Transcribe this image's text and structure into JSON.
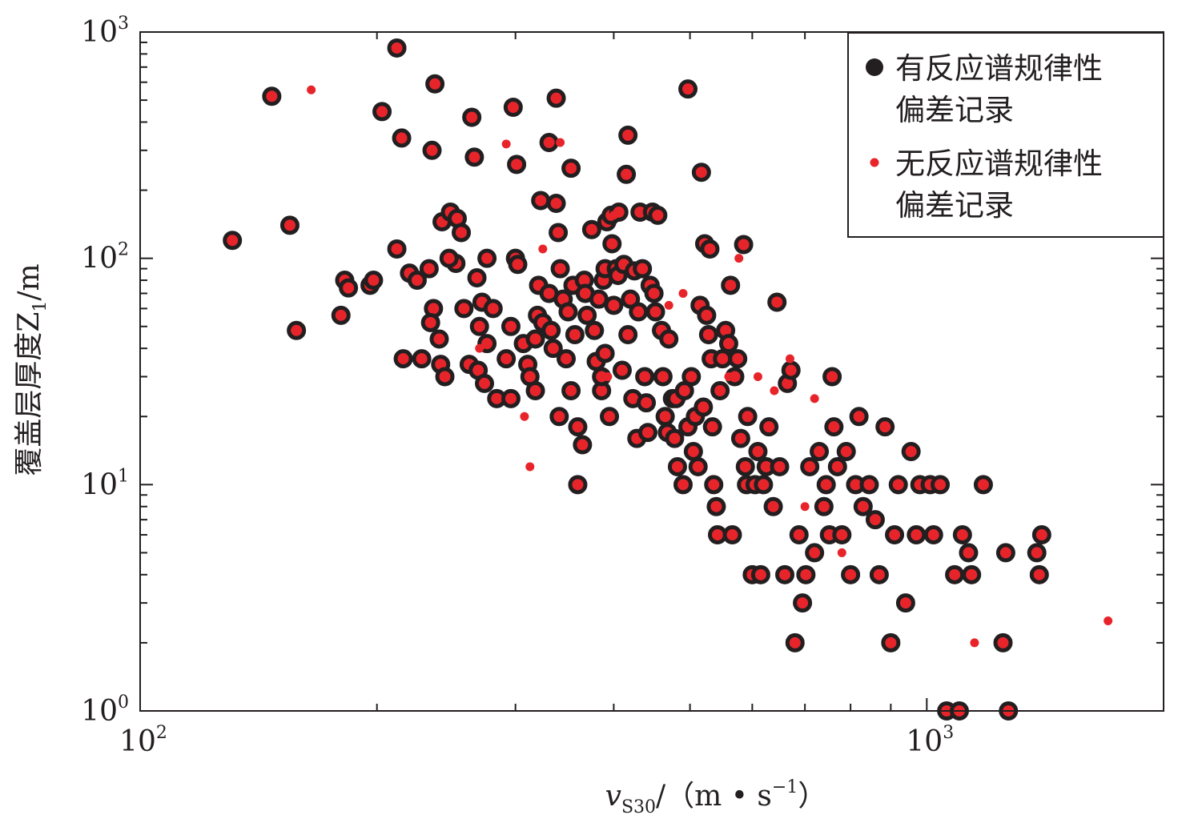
{
  "chart_data": {
    "type": "scatter",
    "x_scale": "log",
    "y_scale": "log",
    "xlim": [
      100,
      2000
    ],
    "ylim": [
      1,
      1000
    ],
    "grid": false,
    "legend_placement": "top-right",
    "xlabel": {
      "var": "v",
      "sub": "S30",
      "unit": "/（m • s",
      "unit_exp": "−1",
      "unit_close": "）"
    },
    "ylabel": {
      "text": "覆盖层厚度Z",
      "sub": "1",
      "unit": "/m"
    },
    "x_ticks": [
      {
        "value": 100,
        "base": "10",
        "exp": "2"
      },
      {
        "value": 1000,
        "base": "10",
        "exp": "3"
      }
    ],
    "y_ticks": [
      {
        "value": 1,
        "base": "10",
        "exp": "0"
      },
      {
        "value": 10,
        "base": "10",
        "exp": "1"
      },
      {
        "value": 100,
        "base": "10",
        "exp": "2"
      },
      {
        "value": 1000,
        "base": "10",
        "exp": "3"
      }
    ],
    "colors": {
      "with": "#231f20",
      "without": "#e8242b",
      "axis": "#231f20"
    },
    "series": [
      {
        "name": "有反应谱规律性偏差记录",
        "name_lines": [
          "有反应谱规律性",
          "偏差记录"
        ],
        "marker": "large-dark-circle",
        "points": [
          [
            212,
            850
          ],
          [
            147,
            520
          ],
          [
            237,
            590
          ],
          [
            497,
            560
          ],
          [
            203,
            445
          ],
          [
            264,
            420
          ],
          [
            298,
            465
          ],
          [
            338,
            510
          ],
          [
            215,
            340
          ],
          [
            235,
            300
          ],
          [
            266,
            280
          ],
          [
            301,
            260
          ],
          [
            331,
            325
          ],
          [
            353,
            250
          ],
          [
            417,
            350
          ],
          [
            415,
            235
          ],
          [
            517,
            240
          ],
          [
            131,
            120
          ],
          [
            155,
            140
          ],
          [
            158,
            48
          ],
          [
            180,
            56
          ],
          [
            182,
            80
          ],
          [
            184,
            74
          ],
          [
            196,
            76
          ],
          [
            198,
            80
          ],
          [
            212,
            110
          ],
          [
            216,
            36
          ],
          [
            220,
            86
          ],
          [
            225,
            80
          ],
          [
            228,
            36
          ],
          [
            233,
            90
          ],
          [
            236,
            60
          ],
          [
            240,
            44
          ],
          [
            234,
            52
          ],
          [
            241,
            34
          ],
          [
            244,
            30
          ],
          [
            242,
            145
          ],
          [
            248,
            160
          ],
          [
            253,
            150
          ],
          [
            256,
            130
          ],
          [
            252,
            95
          ],
          [
            247,
            100
          ],
          [
            258,
            60
          ],
          [
            262,
            34
          ],
          [
            269,
            32
          ],
          [
            274,
            28
          ],
          [
            284,
            24
          ],
          [
            276,
            42
          ],
          [
            270,
            50
          ],
          [
            268,
            82
          ],
          [
            272,
            64
          ],
          [
            281,
            60
          ],
          [
            276,
            100
          ],
          [
            296,
            24
          ],
          [
            292,
            36
          ],
          [
            296,
            50
          ],
          [
            300,
            100
          ],
          [
            302,
            94
          ],
          [
            307,
            42
          ],
          [
            311,
            34
          ],
          [
            313,
            30
          ],
          [
            318,
            26
          ],
          [
            321,
            76
          ],
          [
            318,
            44
          ],
          [
            320,
            56
          ],
          [
            325,
            52
          ],
          [
            323,
            180
          ],
          [
            331,
            70
          ],
          [
            333,
            48
          ],
          [
            335,
            40
          ],
          [
            341,
            20
          ],
          [
            338,
            175
          ],
          [
            340,
            130
          ],
          [
            342,
            90
          ],
          [
            345,
            66
          ],
          [
            350,
            58
          ],
          [
            348,
            36
          ],
          [
            353,
            26
          ],
          [
            355,
            76
          ],
          [
            357,
            46
          ],
          [
            360,
            18
          ],
          [
            360,
            10
          ],
          [
            365,
            15
          ],
          [
            367,
            80
          ],
          [
            370,
            56
          ],
          [
            368,
            70
          ],
          [
            375,
            134
          ],
          [
            378,
            48
          ],
          [
            380,
            35
          ],
          [
            383,
            66
          ],
          [
            386,
            26
          ],
          [
            386,
            30
          ],
          [
            388,
            80
          ],
          [
            390,
            38
          ],
          [
            390,
            90
          ],
          [
            392,
            145
          ],
          [
            395,
            20
          ],
          [
            397,
            155
          ],
          [
            398,
            116
          ],
          [
            400,
            62
          ],
          [
            403,
            90
          ],
          [
            405,
            84
          ],
          [
            406,
            160
          ],
          [
            410,
            32
          ],
          [
            412,
            94
          ],
          [
            417,
            46
          ],
          [
            420,
            66
          ],
          [
            423,
            24
          ],
          [
            425,
            88
          ],
          [
            428,
            16
          ],
          [
            430,
            58
          ],
          [
            432,
            160
          ],
          [
            435,
            90
          ],
          [
            438,
            30
          ],
          [
            440,
            23
          ],
          [
            442,
            17
          ],
          [
            445,
            76
          ],
          [
            448,
            160
          ],
          [
            450,
            70
          ],
          [
            452,
            58
          ],
          [
            455,
            155
          ],
          [
            460,
            48
          ],
          [
            462,
            30
          ],
          [
            465,
            20
          ],
          [
            468,
            17
          ],
          [
            470,
            44
          ],
          [
            475,
            24
          ],
          [
            478,
            16
          ],
          [
            480,
            24
          ],
          [
            482,
            12
          ],
          [
            490,
            10
          ],
          [
            492,
            26
          ],
          [
            497,
            18
          ],
          [
            502,
            30
          ],
          [
            505,
            14
          ],
          [
            508,
            20
          ],
          [
            512,
            12
          ],
          [
            515,
            62
          ],
          [
            520,
            22
          ],
          [
            522,
            116
          ],
          [
            525,
            56
          ],
          [
            528,
            46
          ],
          [
            530,
            110
          ],
          [
            532,
            36
          ],
          [
            534,
            18
          ],
          [
            536,
            10
          ],
          [
            540,
            8
          ],
          [
            542,
            6
          ],
          [
            546,
            26
          ],
          [
            550,
            36
          ],
          [
            555,
            48
          ],
          [
            560,
            42
          ],
          [
            563,
            76
          ],
          [
            566,
            6
          ],
          [
            570,
            30
          ],
          [
            575,
            36
          ],
          [
            580,
            16
          ],
          [
            585,
            115
          ],
          [
            588,
            12
          ],
          [
            590,
            10
          ],
          [
            592,
            20
          ],
          [
            600,
            4
          ],
          [
            605,
            10
          ],
          [
            610,
            14
          ],
          [
            615,
            4
          ],
          [
            620,
            10
          ],
          [
            625,
            12
          ],
          [
            630,
            18
          ],
          [
            638,
            8
          ],
          [
            645,
            64
          ],
          [
            650,
            12
          ],
          [
            660,
            4
          ],
          [
            665,
            28
          ],
          [
            672,
            32
          ],
          [
            680,
            2
          ],
          [
            688,
            6
          ],
          [
            695,
            3
          ],
          [
            702,
            4
          ],
          [
            710,
            12
          ],
          [
            720,
            5
          ],
          [
            730,
            14
          ],
          [
            740,
            8
          ],
          [
            745,
            10
          ],
          [
            752,
            6
          ],
          [
            758,
            30
          ],
          [
            762,
            18
          ],
          [
            770,
            12
          ],
          [
            780,
            6
          ],
          [
            790,
            14
          ],
          [
            800,
            4
          ],
          [
            812,
            10
          ],
          [
            820,
            20
          ],
          [
            830,
            8
          ],
          [
            845,
            10
          ],
          [
            860,
            7
          ],
          [
            870,
            4
          ],
          [
            885,
            18
          ],
          [
            900,
            2
          ],
          [
            910,
            6
          ],
          [
            920,
            10
          ],
          [
            940,
            3
          ],
          [
            955,
            14
          ],
          [
            970,
            6
          ],
          [
            980,
            10
          ],
          [
            1010,
            10
          ],
          [
            1020,
            6
          ],
          [
            1040,
            10
          ],
          [
            1060,
            1
          ],
          [
            1085,
            4
          ],
          [
            1100,
            1
          ],
          [
            1110,
            6
          ],
          [
            1130,
            5
          ],
          [
            1140,
            4
          ],
          [
            1180,
            10
          ],
          [
            1250,
            2
          ],
          [
            1260,
            5
          ],
          [
            1270,
            1
          ],
          [
            1380,
            5
          ],
          [
            1400,
            6
          ],
          [
            1390,
            4
          ]
        ]
      },
      {
        "name": "无反应谱规律性偏差记录",
        "name_lines": [
          "无反应谱规律性",
          "偏差记录"
        ],
        "marker": "small-red-dot",
        "points": [
          [
            165,
            555
          ],
          [
            292,
            320
          ],
          [
            342,
            325
          ],
          [
            270,
            40
          ],
          [
            308,
            20
          ],
          [
            313,
            12
          ],
          [
            325,
            110
          ],
          [
            393,
            30
          ],
          [
            400,
            155
          ],
          [
            470,
            62
          ],
          [
            490,
            70
          ],
          [
            560,
            30
          ],
          [
            577,
            100
          ],
          [
            610,
            30
          ],
          [
            640,
            26
          ],
          [
            670,
            36
          ],
          [
            700,
            8
          ],
          [
            720,
            24
          ],
          [
            780,
            5
          ],
          [
            1150,
            2
          ],
          [
            1700,
            2.5
          ]
        ]
      }
    ]
  }
}
